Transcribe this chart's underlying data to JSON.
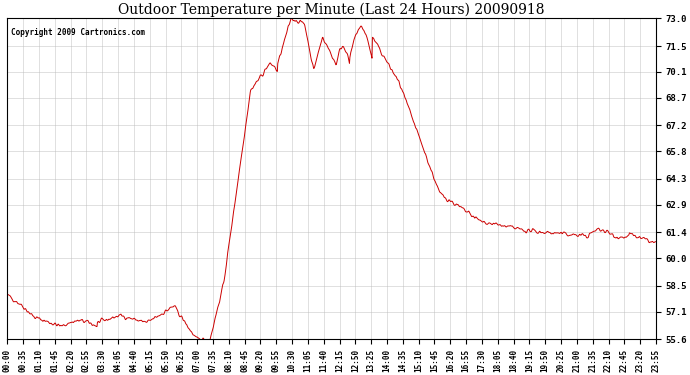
{
  "title": "Outdoor Temperature per Minute (Last 24 Hours) 20090918",
  "copyright_text": "Copyright 2009 Cartronics.com",
  "line_color": "#cc0000",
  "bg_color": "#ffffff",
  "plot_bg_color": "#ffffff",
  "grid_color": "#bbbbbb",
  "title_fontsize": 11,
  "yticks": [
    55.6,
    57.1,
    58.5,
    60.0,
    61.4,
    62.9,
    64.3,
    65.8,
    67.2,
    68.7,
    70.1,
    71.5,
    73.0
  ],
  "ylim": [
    55.6,
    73.0
  ],
  "xtick_labels": [
    "00:00",
    "00:35",
    "01:10",
    "01:45",
    "02:20",
    "02:55",
    "03:30",
    "04:05",
    "04:40",
    "05:15",
    "05:50",
    "06:25",
    "07:00",
    "07:35",
    "08:10",
    "08:45",
    "09:20",
    "09:55",
    "10:30",
    "11:05",
    "11:40",
    "12:15",
    "12:50",
    "13:25",
    "14:00",
    "14:35",
    "15:10",
    "15:45",
    "16:20",
    "16:55",
    "17:30",
    "18:05",
    "18:40",
    "19:15",
    "19:50",
    "20:25",
    "21:00",
    "21:35",
    "22:10",
    "22:45",
    "23:20",
    "23:55"
  ],
  "num_points": 1440
}
